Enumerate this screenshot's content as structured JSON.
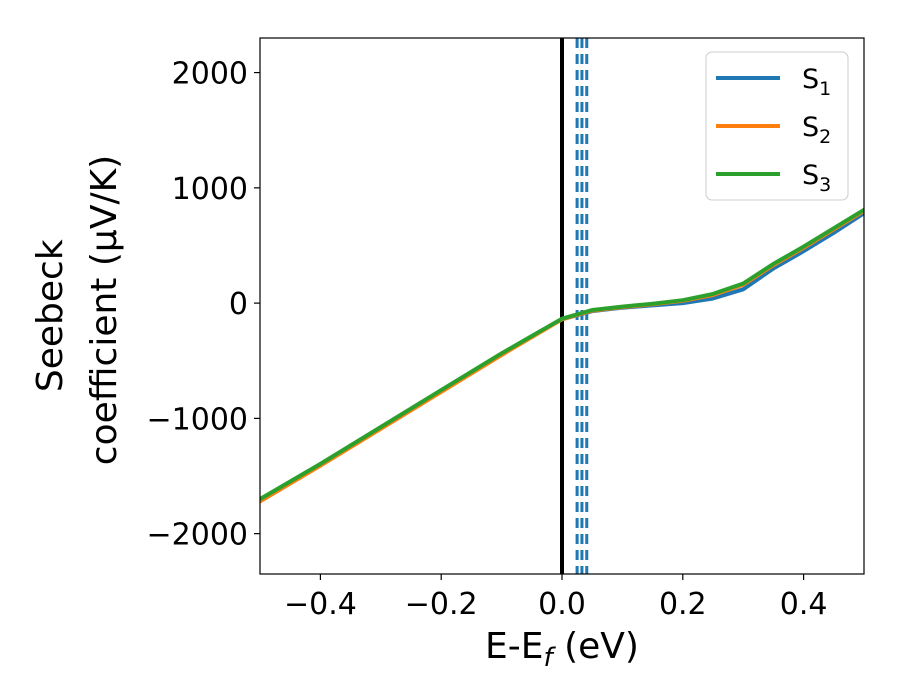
{
  "chart_data": {
    "type": "line",
    "xlabel": "E-E",
    "xlabel_sub": "f",
    "xlabel_tail": " (eV)",
    "ylabel_line1": "Seebeck",
    "ylabel_line2": "coefficient  (μV/K)",
    "xlim": [
      -0.5,
      0.5
    ],
    "ylim": [
      -2350,
      2300
    ],
    "xticks": [
      -0.4,
      -0.2,
      0.0,
      0.2,
      0.4
    ],
    "xtick_labels": [
      "−0.4",
      "−0.2",
      "0.0",
      "0.2",
      "0.4"
    ],
    "yticks": [
      -2000,
      -1000,
      0,
      1000,
      2000
    ],
    "ytick_labels": [
      "−2000",
      "−1000",
      "0",
      "1000",
      "2000"
    ],
    "vlines": [
      {
        "x": 0.0,
        "style": "solid",
        "color": "#000000"
      },
      {
        "x": 0.025,
        "style": "dashed",
        "color": "#1f77b4"
      },
      {
        "x": 0.033,
        "style": "dashed",
        "color": "#1f77b4"
      },
      {
        "x": 0.041,
        "style": "dashed",
        "color": "#1f77b4"
      }
    ],
    "legend_position": "top-right",
    "series": [
      {
        "name": "S",
        "sub": "1",
        "color": "#1f77b4",
        "x": [
          -0.5,
          -0.4,
          -0.3,
          -0.2,
          -0.1,
          -0.05,
          0.0,
          0.05,
          0.1,
          0.15,
          0.2,
          0.25,
          0.3,
          0.35,
          0.4,
          0.45,
          0.5
        ],
        "y": [
          -1710,
          -1400,
          -1080,
          -760,
          -440,
          -290,
          -140,
          -70,
          -40,
          -20,
          0,
          40,
          120,
          300,
          450,
          610,
          780
        ]
      },
      {
        "name": "S",
        "sub": "2",
        "color": "#ff7f0e",
        "x": [
          -0.5,
          -0.4,
          -0.3,
          -0.2,
          -0.1,
          -0.05,
          0.0,
          0.05,
          0.1,
          0.15,
          0.2,
          0.25,
          0.3,
          0.35,
          0.4,
          0.45,
          0.5
        ],
        "y": [
          -1720,
          -1410,
          -1090,
          -770,
          -450,
          -295,
          -140,
          -65,
          -35,
          -10,
          20,
          70,
          160,
          330,
          480,
          640,
          800
        ]
      },
      {
        "name": "S",
        "sub": "3",
        "color": "#2ca02c",
        "x": [
          -0.5,
          -0.4,
          -0.3,
          -0.2,
          -0.1,
          -0.05,
          0.0,
          0.05,
          0.1,
          0.15,
          0.2,
          0.25,
          0.3,
          0.35,
          0.4,
          0.45,
          0.5
        ],
        "y": [
          -1700,
          -1395,
          -1075,
          -755,
          -435,
          -285,
          -135,
          -60,
          -30,
          -5,
          25,
          80,
          170,
          340,
          490,
          650,
          810
        ]
      }
    ]
  }
}
